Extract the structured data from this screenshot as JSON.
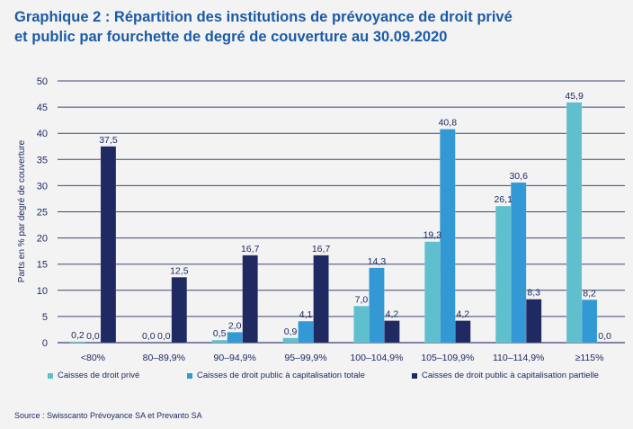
{
  "title": {
    "line1": "Graphique 2 : Répartition des institutions de prévoyance de droit privé",
    "line2": "et public par fourchette de degré de couverture au 30.09.2020"
  },
  "source": "Source : Swisscanto Prévoyance SA et Prevanto SA",
  "chart_data": {
    "type": "bar",
    "title": "Graphique 2 : Répartition des institutions de prévoyance de droit privé et public par fourchette de degré de couverture au 30.09.2020",
    "xlabel": "",
    "ylabel": "Parts en % par degré de couverture",
    "ylim": [
      0,
      50
    ],
    "yticks": [
      0,
      5,
      10,
      15,
      20,
      25,
      30,
      35,
      40,
      45,
      50
    ],
    "ytick_labels": [
      "0",
      "5",
      "10",
      "15",
      "20",
      "25",
      "30",
      "35",
      "40",
      "45",
      "50"
    ],
    "grid": true,
    "legend_position": "bottom",
    "categories": [
      "<80%",
      "80–89,9%",
      "90–94,9%",
      "95–99,9%",
      "100–104,9%",
      "105–109,9%",
      "110–114,9%",
      "≥115%"
    ],
    "series": [
      {
        "name": "Caisses de droit privé",
        "color": "#5fbfcc",
        "values": [
          0.2,
          0.0,
          0.5,
          0.9,
          7.0,
          19.3,
          26.1,
          45.9
        ],
        "labels": [
          "0,2",
          "0,0",
          "0,5",
          "0,9",
          "7,0",
          "19,3",
          "26,1",
          "45,9"
        ]
      },
      {
        "name": "Caisses de droit public à capitalisation totale",
        "color": "#3399d4",
        "values": [
          0.0,
          0.0,
          2.0,
          4.1,
          14.3,
          40.8,
          30.6,
          8.2
        ],
        "labels": [
          "0,0",
          "0,0",
          "2,0",
          "4,1",
          "14,3",
          "40,8",
          "30,6",
          "8,2"
        ]
      },
      {
        "name": "Caisses de droit public à capitalisation partielle",
        "color": "#1f2a63",
        "values": [
          37.5,
          12.5,
          16.7,
          16.7,
          4.2,
          4.2,
          8.3,
          0.0
        ],
        "labels": [
          "37,5",
          "12,5",
          "16,7",
          "16,7",
          "4,2",
          "4,2",
          "8,3",
          "0,0"
        ]
      }
    ]
  }
}
